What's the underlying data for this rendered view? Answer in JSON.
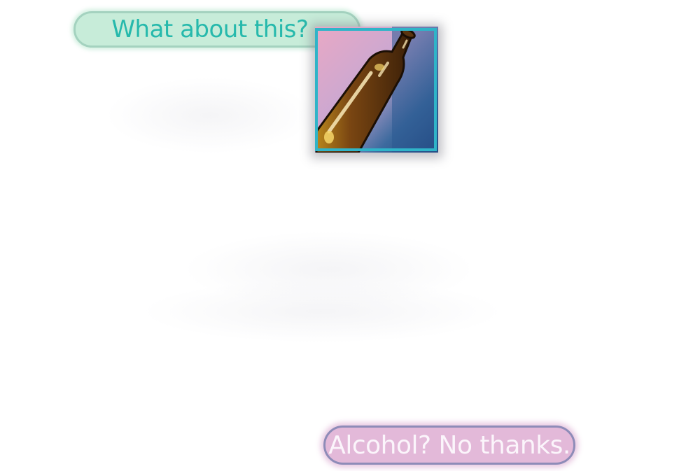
{
  "conversation": {
    "question_text": "What about this?",
    "answer_text": "Alcohol? No thanks."
  },
  "picture": {
    "icon": "beer-bottle-icon"
  },
  "colors": {
    "question_bubble": "#c7ecd9",
    "question_text": "#26b9ac",
    "answer_bubble": "#e3b9d9",
    "answer_text": "#fbf5fb",
    "frame_border": "#2fb4c8",
    "bottle": "#6b3d12"
  }
}
